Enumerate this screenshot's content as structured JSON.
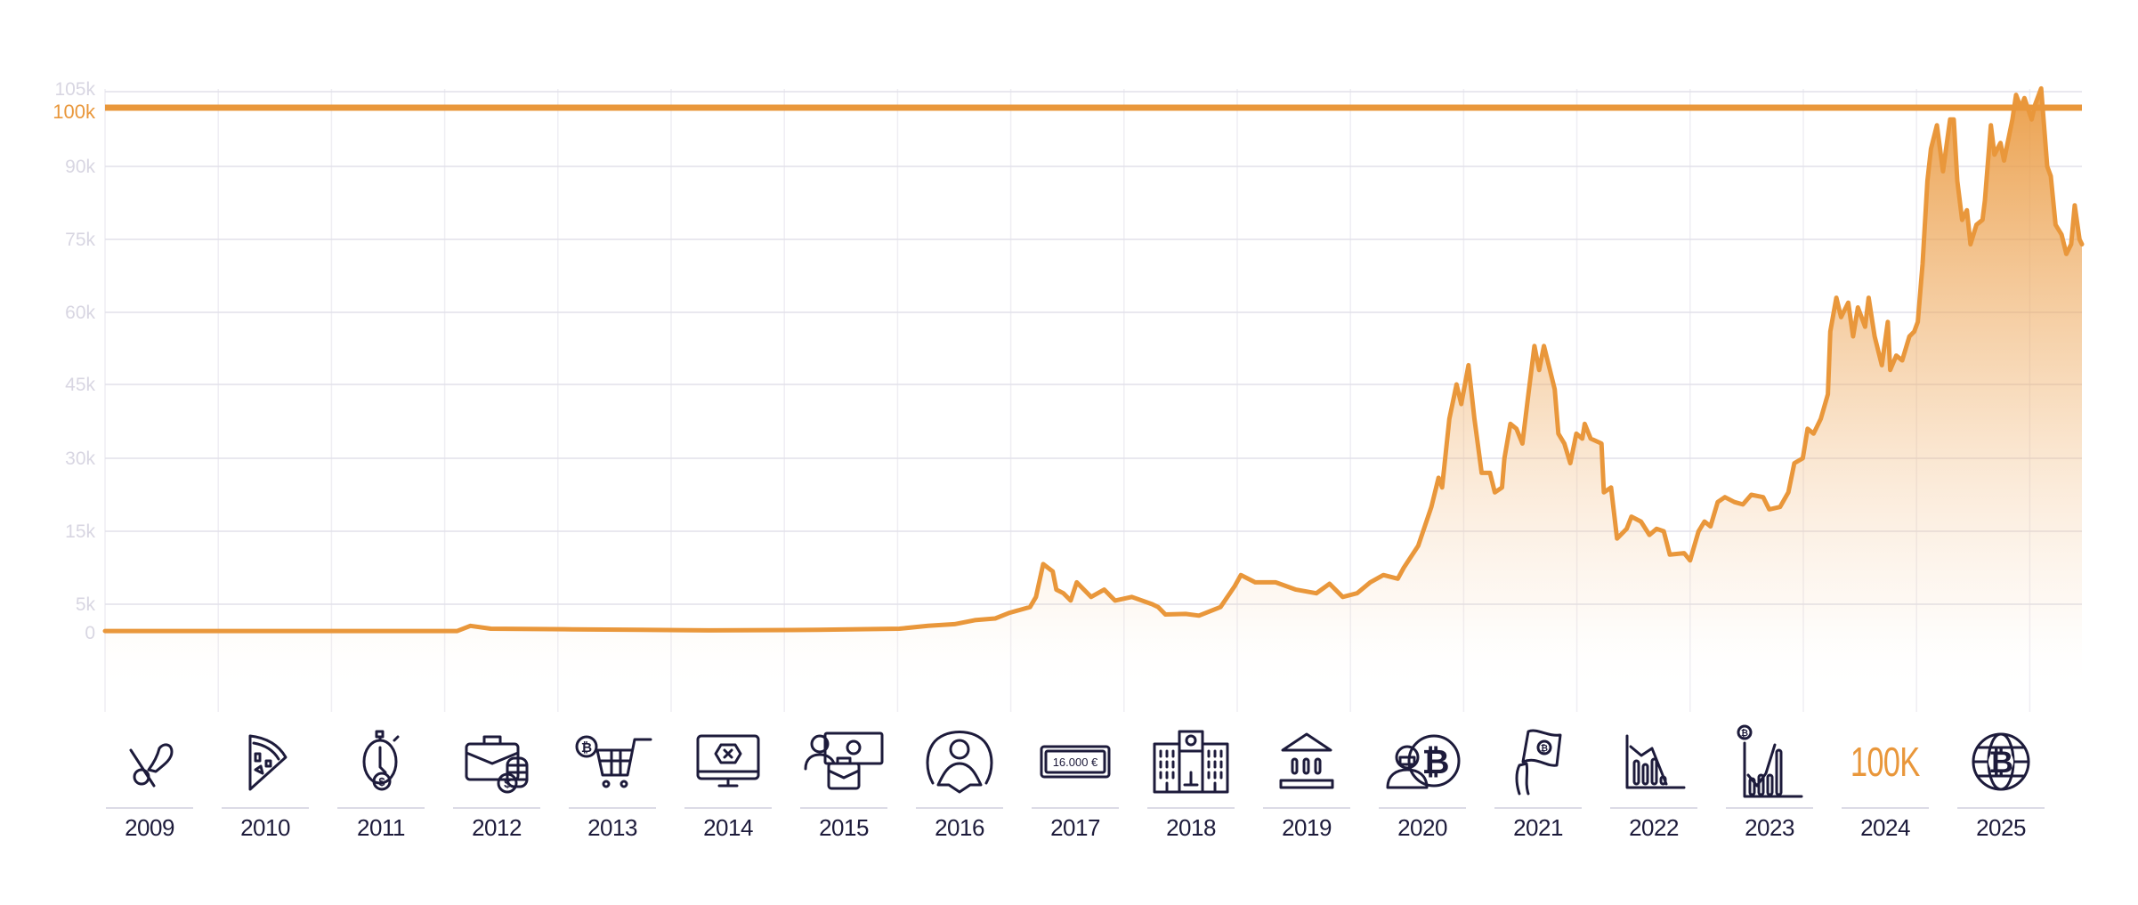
{
  "chart_data": {
    "type": "area",
    "title": "",
    "xlabel": "",
    "ylabel": "",
    "xlim": [
      2009,
      2025.5
    ],
    "ylim": [
      0,
      105000
    ],
    "grid": true,
    "legend": "none",
    "y_ticks": [
      {
        "value": 0,
        "label": "0"
      },
      {
        "value": 5000,
        "label": "5k"
      },
      {
        "value": 15000,
        "label": "15k"
      },
      {
        "value": 30000,
        "label": "30k"
      },
      {
        "value": 45000,
        "label": "45k"
      },
      {
        "value": 60000,
        "label": "60k"
      },
      {
        "value": 75000,
        "label": "75k"
      },
      {
        "value": 90000,
        "label": "90k"
      },
      {
        "value": 100000,
        "label": "100k",
        "highlight": true
      },
      {
        "value": 105000,
        "label": "105k"
      }
    ],
    "reference_line": {
      "value": 100000,
      "label": "100k",
      "color": "#e9973b"
    },
    "line_color": "#e9973b",
    "series": [
      {
        "points": [
          [
            2009.0,
            300
          ],
          [
            2011.94,
            300
          ],
          [
            2012.05,
            1200
          ],
          [
            2012.22,
            700
          ],
          [
            2012.9,
            600
          ],
          [
            2013.47,
            500
          ],
          [
            2014.04,
            400
          ],
          [
            2014.95,
            500
          ],
          [
            2015.63,
            700
          ],
          [
            2015.87,
            1200
          ],
          [
            2016.09,
            1500
          ],
          [
            2016.26,
            2200
          ],
          [
            2016.43,
            2500
          ],
          [
            2016.55,
            3500
          ],
          [
            2016.72,
            4500
          ],
          [
            2016.77,
            6000
          ],
          [
            2016.83,
            10500
          ],
          [
            2016.91,
            9500
          ],
          [
            2016.94,
            7000
          ],
          [
            2017.0,
            6500
          ],
          [
            2017.06,
            5500
          ],
          [
            2017.11,
            8000
          ],
          [
            2017.23,
            6000
          ],
          [
            2017.34,
            7000
          ],
          [
            2017.43,
            5500
          ],
          [
            2017.57,
            6000
          ],
          [
            2017.74,
            5000
          ],
          [
            2017.79,
            4500
          ],
          [
            2017.85,
            3200
          ],
          [
            2018.02,
            3300
          ],
          [
            2018.13,
            3000
          ],
          [
            2018.31,
            4500
          ],
          [
            2018.43,
            7500
          ],
          [
            2018.48,
            9000
          ],
          [
            2018.6,
            8000
          ],
          [
            2018.77,
            8000
          ],
          [
            2018.94,
            7000
          ],
          [
            2019.11,
            6500
          ],
          [
            2019.22,
            7800
          ],
          [
            2019.33,
            6000
          ],
          [
            2019.45,
            6500
          ],
          [
            2019.56,
            8000
          ],
          [
            2019.67,
            9000
          ],
          [
            2019.79,
            8500
          ],
          [
            2019.84,
            10000
          ],
          [
            2019.96,
            13000
          ],
          [
            2020.07,
            20000
          ],
          [
            2020.13,
            26000
          ],
          [
            2020.16,
            24000
          ],
          [
            2020.22,
            38000
          ],
          [
            2020.28,
            45000
          ],
          [
            2020.32,
            41000
          ],
          [
            2020.38,
            49000
          ],
          [
            2020.43,
            38000
          ],
          [
            2020.49,
            27000
          ],
          [
            2020.56,
            27000
          ],
          [
            2020.6,
            23000
          ],
          [
            2020.66,
            24000
          ],
          [
            2020.68,
            30000
          ],
          [
            2020.73,
            37000
          ],
          [
            2020.78,
            36000
          ],
          [
            2020.83,
            33000
          ],
          [
            2020.88,
            43000
          ],
          [
            2020.93,
            53000
          ],
          [
            2020.97,
            48000
          ],
          [
            2021.01,
            53000
          ],
          [
            2021.1,
            44000
          ],
          [
            2021.13,
            35000
          ],
          [
            2021.18,
            33000
          ],
          [
            2021.23,
            29000
          ],
          [
            2021.28,
            35000
          ],
          [
            2021.33,
            34000
          ],
          [
            2021.35,
            37000
          ],
          [
            2021.4,
            34000
          ],
          [
            2021.49,
            33000
          ],
          [
            2021.51,
            23000
          ],
          [
            2021.57,
            24000
          ],
          [
            2021.62,
            14000
          ],
          [
            2021.7,
            15500
          ],
          [
            2021.74,
            18000
          ],
          [
            2021.82,
            17000
          ],
          [
            2021.89,
            14500
          ],
          [
            2021.95,
            15500
          ],
          [
            2022.01,
            15000
          ],
          [
            2022.06,
            11800
          ],
          [
            2022.18,
            12000
          ],
          [
            2022.23,
            11000
          ],
          [
            2022.3,
            15000
          ],
          [
            2022.35,
            17000
          ],
          [
            2022.4,
            16000
          ],
          [
            2022.46,
            21000
          ],
          [
            2022.52,
            22000
          ],
          [
            2022.6,
            21000
          ],
          [
            2022.67,
            20500
          ],
          [
            2022.74,
            22500
          ],
          [
            2022.84,
            22000
          ],
          [
            2022.89,
            19500
          ],
          [
            2022.98,
            20000
          ],
          [
            2023.05,
            23000
          ],
          [
            2023.1,
            29000
          ],
          [
            2023.17,
            30000
          ],
          [
            2023.21,
            36000
          ],
          [
            2023.26,
            35000
          ],
          [
            2023.32,
            38000
          ],
          [
            2023.38,
            43000
          ],
          [
            2023.4,
            56000
          ],
          [
            2023.45,
            63000
          ],
          [
            2023.49,
            59000
          ],
          [
            2023.55,
            62000
          ],
          [
            2023.59,
            55000
          ],
          [
            2023.63,
            61000
          ],
          [
            2023.69,
            57000
          ],
          [
            2023.72,
            63000
          ],
          [
            2023.77,
            55000
          ],
          [
            2023.83,
            49000
          ],
          [
            2023.88,
            58000
          ],
          [
            2023.9,
            48000
          ],
          [
            2023.95,
            51000
          ],
          [
            2024.0,
            50000
          ],
          [
            2024.06,
            55000
          ],
          [
            2024.1,
            56000
          ],
          [
            2024.13,
            58000
          ],
          [
            2024.17,
            70000
          ],
          [
            2024.21,
            87000
          ],
          [
            2024.24,
            93000
          ],
          [
            2024.29,
            97000
          ],
          [
            2024.34,
            89000
          ],
          [
            2024.4,
            98000
          ],
          [
            2024.43,
            98000
          ],
          [
            2024.46,
            87000
          ],
          [
            2024.5,
            79000
          ],
          [
            2024.54,
            81000
          ],
          [
            2024.57,
            74000
          ],
          [
            2024.62,
            78000
          ],
          [
            2024.67,
            79000
          ],
          [
            2024.69,
            83000
          ],
          [
            2024.74,
            97000
          ],
          [
            2024.77,
            92000
          ],
          [
            2024.82,
            94000
          ],
          [
            2024.85,
            91000
          ],
          [
            2024.92,
            98000
          ],
          [
            2024.95,
            104000
          ],
          [
            2024.99,
            100000
          ],
          [
            2025.02,
            103000
          ],
          [
            2025.08,
            98000
          ],
          [
            2025.11,
            101000
          ],
          [
            2025.16,
            106000
          ],
          [
            2025.21,
            90000
          ],
          [
            2025.24,
            88000
          ],
          [
            2025.28,
            78000
          ],
          [
            2025.33,
            76000
          ],
          [
            2025.37,
            72000
          ],
          [
            2025.41,
            74000
          ],
          [
            2025.44,
            82000
          ],
          [
            2025.48,
            75000
          ],
          [
            2025.5,
            74000
          ]
        ]
      }
    ]
  },
  "timeline": [
    {
      "year": "2009",
      "icon": "pizza-slice-crossed-icon"
    },
    {
      "year": "2010",
      "icon": "pizza-icon"
    },
    {
      "year": "2011",
      "icon": "stopwatch-dollar-icon"
    },
    {
      "year": "2012",
      "icon": "briefcase-coins-icon"
    },
    {
      "year": "2013",
      "icon": "bitcoin-shopping-cart-icon"
    },
    {
      "year": "2014",
      "icon": "monitor-error-icon"
    },
    {
      "year": "2015",
      "icon": "person-briefcase-banknote-icon"
    },
    {
      "year": "2016",
      "icon": "user-circle-icon"
    },
    {
      "year": "2017",
      "icon": "banknote-icon",
      "text": "16.000 €"
    },
    {
      "year": "2018",
      "icon": "bank-building-icon"
    },
    {
      "year": "2019",
      "icon": "government-building-icon"
    },
    {
      "year": "2020",
      "icon": "masked-person-bitcoin-icon"
    },
    {
      "year": "2021",
      "icon": "hand-bitcoin-flag-icon"
    },
    {
      "year": "2022",
      "icon": "falling-bar-chart-icon"
    },
    {
      "year": "2023",
      "icon": "rising-bar-chart-bitcoin-icon"
    },
    {
      "year": "2024",
      "icon": "100k-text-icon",
      "text": "100K"
    },
    {
      "year": "2025",
      "icon": "bitcoin-globe-icon"
    }
  ]
}
